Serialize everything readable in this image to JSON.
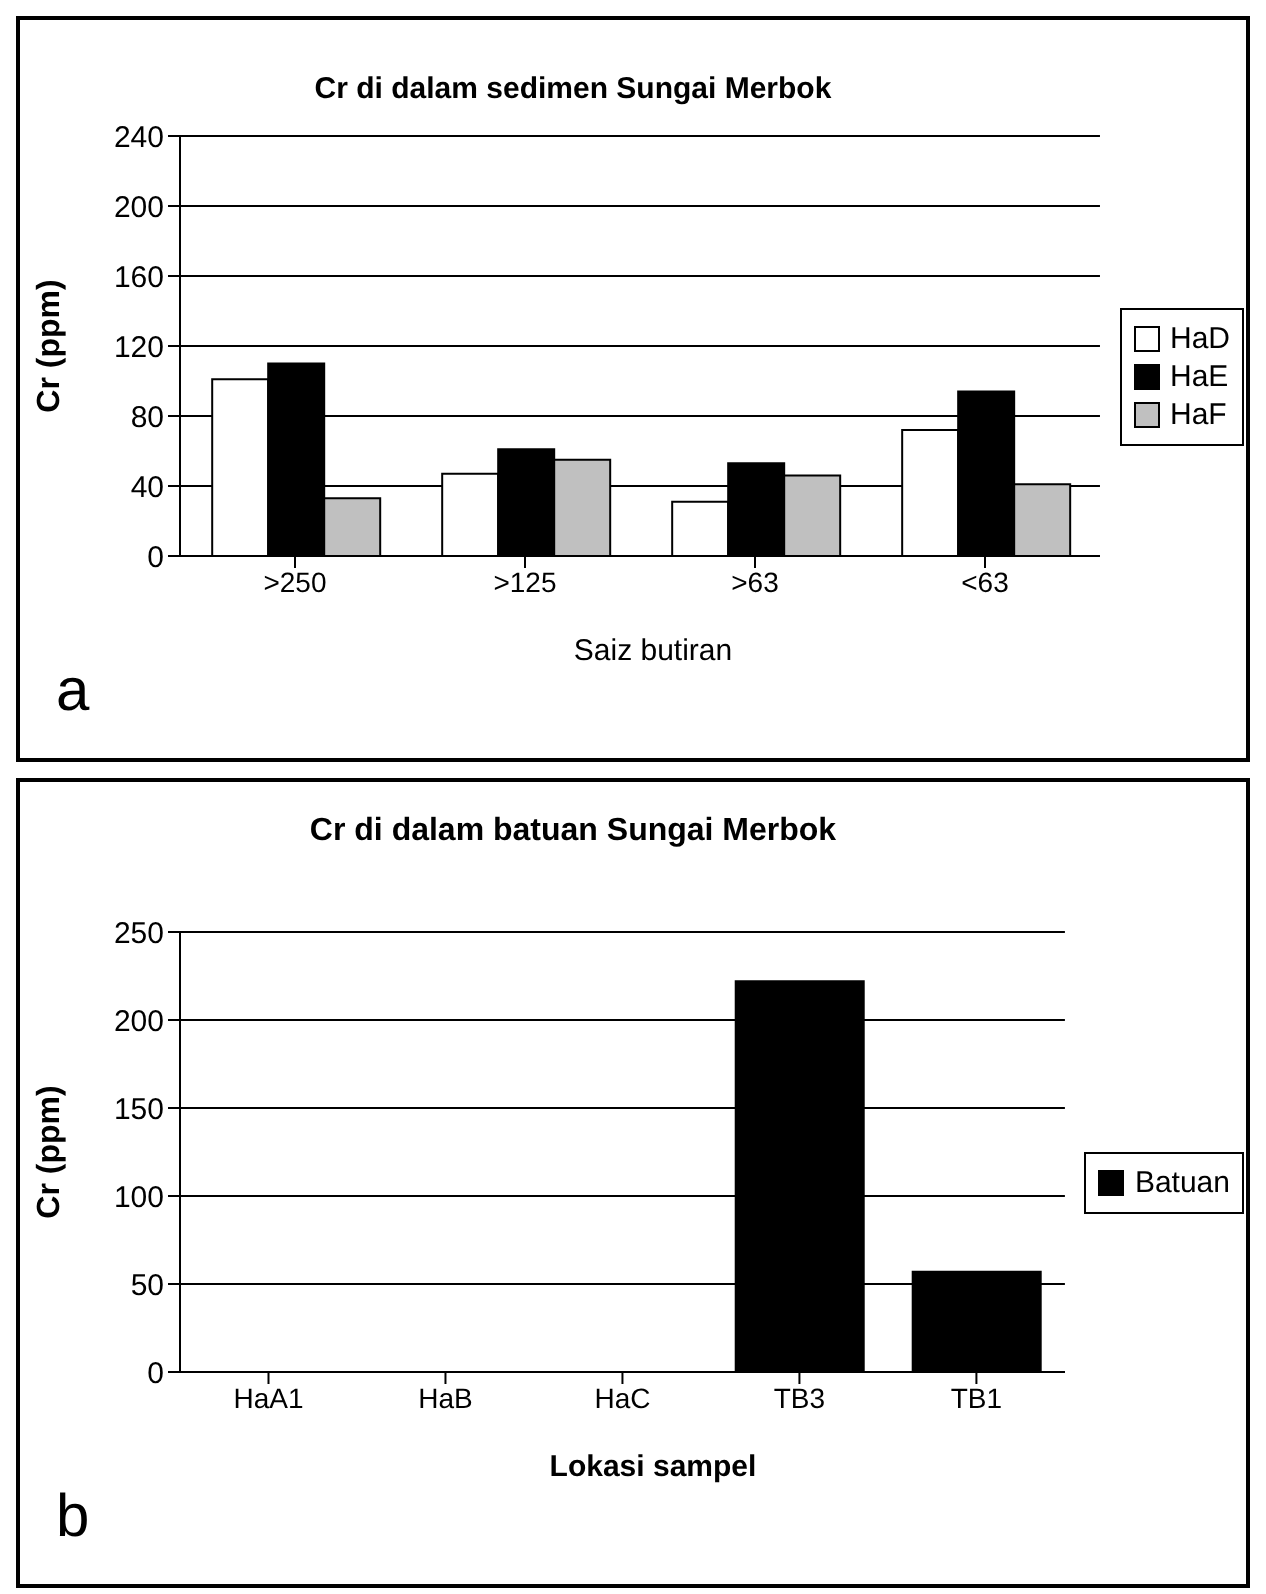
{
  "chart_data": [
    {
      "type": "bar",
      "title": "Cr di dalam sedimen Sungai Merbok",
      "xlabel": "Saiz butiran",
      "ylabel": "Cr (ppm)",
      "categories": [
        ">250",
        ">125",
        ">63",
        "<63"
      ],
      "series": [
        {
          "name": "HaD",
          "color": "#ffffff",
          "values": [
            101,
            47,
            31,
            72
          ]
        },
        {
          "name": "HaE",
          "color": "#000000",
          "values": [
            110,
            61,
            53,
            94
          ]
        },
        {
          "name": "HaF",
          "color": "#c0c0c0",
          "values": [
            33,
            55,
            46,
            41
          ]
        }
      ],
      "ylim": [
        0,
        240
      ],
      "yticks": [
        0,
        40,
        80,
        120,
        160,
        200,
        240
      ],
      "grid": "y",
      "legend": "right",
      "annotations": [
        "a"
      ]
    },
    {
      "type": "bar",
      "title": "Cr di dalam batuan Sungai Merbok",
      "xlabel": "Lokasi sampel",
      "ylabel": "Cr (ppm)",
      "categories": [
        "HaA1",
        "HaB",
        "HaC",
        "TB3",
        "TB1"
      ],
      "series": [
        {
          "name": "Batuan",
          "color": "#000000",
          "values": [
            null,
            null,
            null,
            222,
            57
          ]
        }
      ],
      "ylim": [
        0,
        250
      ],
      "yticks": [
        0,
        50,
        100,
        150,
        200,
        250
      ],
      "grid": "y",
      "legend": "right",
      "annotations": [
        "b"
      ]
    }
  ]
}
